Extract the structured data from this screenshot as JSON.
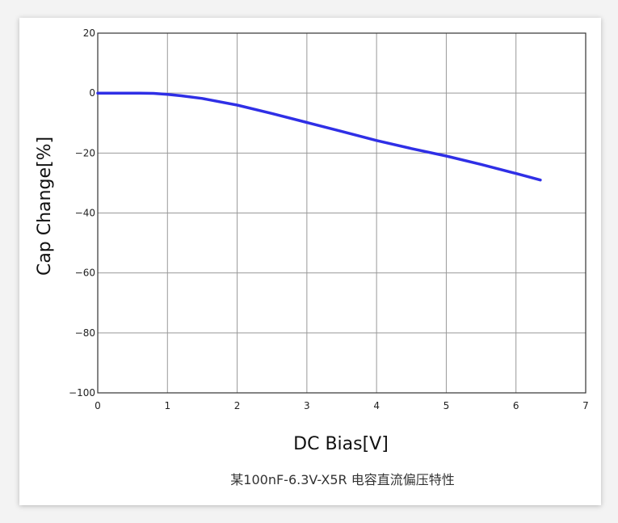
{
  "chart_data": {
    "type": "line",
    "xlabel": "DC Bias[V]",
    "ylabel": "Cap Change[%]",
    "caption": "某100nF-6.3V-X5R 电容直流偏压特性",
    "xlim": [
      0,
      7
    ],
    "ylim": [
      -100,
      20
    ],
    "x_ticks": [
      0,
      1,
      2,
      3,
      4,
      5,
      6,
      7
    ],
    "y_ticks": [
      20,
      0,
      -20,
      -40,
      -60,
      -80,
      -100
    ],
    "grid": true,
    "line_color": "#2f2fe6",
    "series": [
      {
        "x": [
          0,
          0.3,
          0.6,
          0.8,
          1.0,
          1.2,
          1.5,
          2.0,
          2.5,
          3.0,
          3.5,
          4.0,
          4.5,
          5.0,
          5.5,
          6.0,
          6.35
        ],
        "values": [
          0,
          0,
          0,
          -0.1,
          -0.4,
          -0.9,
          -1.8,
          -4.0,
          -6.8,
          -9.8,
          -12.8,
          -15.8,
          -18.5,
          -21.0,
          -23.8,
          -26.8,
          -29.0
        ]
      }
    ]
  }
}
